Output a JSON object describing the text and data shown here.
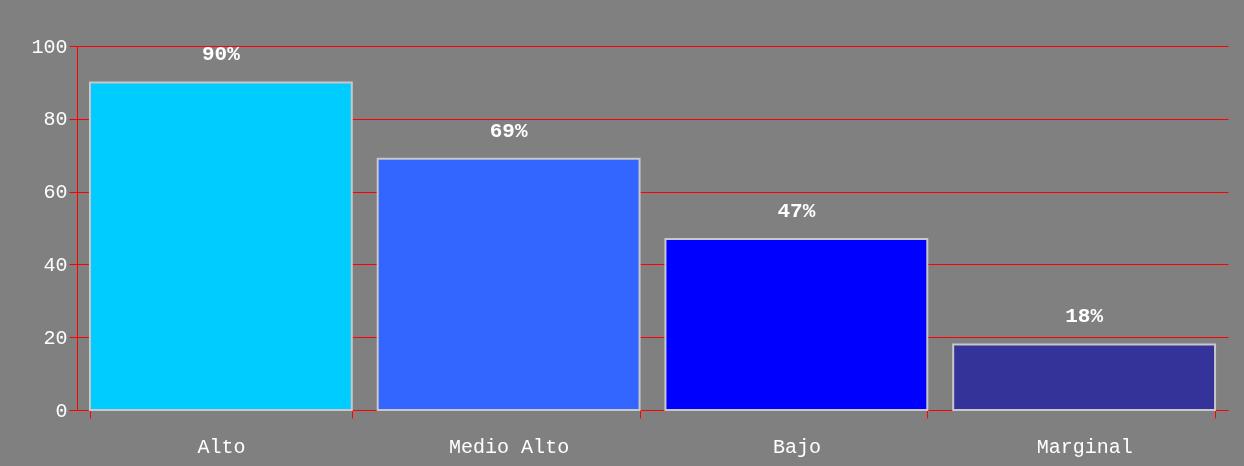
{
  "chart_data": {
    "type": "bar",
    "categories": [
      "Alto",
      "Medio Alto",
      "Bajo",
      "Marginal"
    ],
    "values": [
      90,
      69,
      47,
      18
    ],
    "colors": [
      "#00ccff",
      "#3366ff",
      "#0000ff",
      "#333399"
    ],
    "value_labels": [
      "90%",
      "69%",
      "47%",
      "18%"
    ],
    "ylim": [
      0,
      100
    ],
    "yticks": [
      0,
      20,
      40,
      60,
      80,
      100
    ],
    "grid": "y"
  }
}
